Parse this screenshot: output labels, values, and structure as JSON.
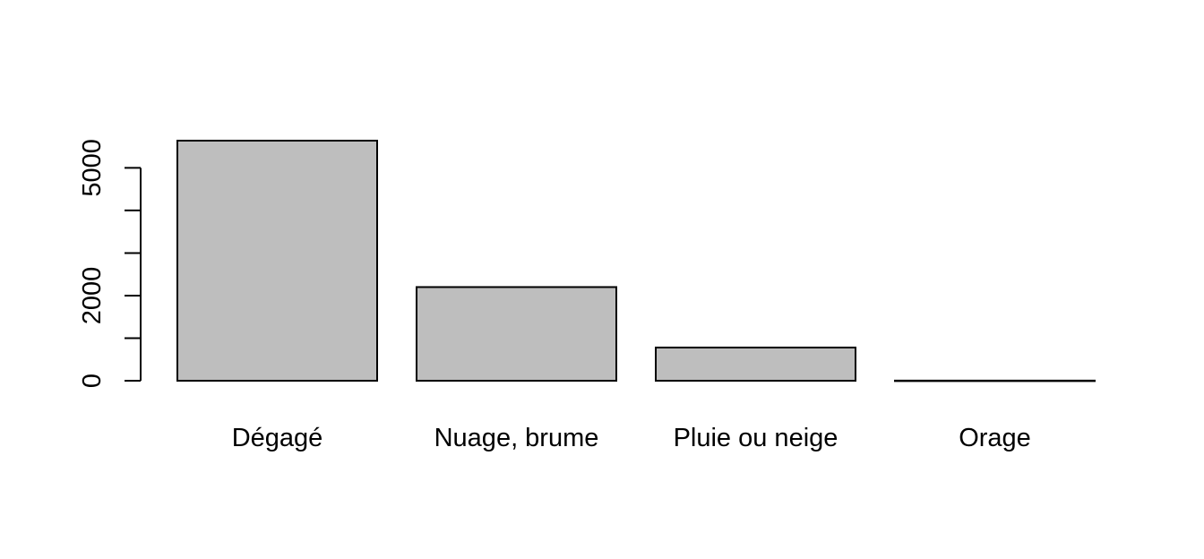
{
  "chart_data": {
    "type": "bar",
    "categories": [
      "Dégagé",
      "Nuage, brume",
      "Pluie ou neige",
      "Orage"
    ],
    "values": [
      5640,
      2200,
      780,
      3
    ],
    "ylim": [
      0,
      5640
    ],
    "y_ticks": [
      0,
      1000,
      2000,
      3000,
      4000,
      5000
    ],
    "y_tick_labels": [
      "0",
      "",
      "2000",
      "",
      "",
      "5000"
    ],
    "title": "",
    "xlabel": "",
    "ylabel": "",
    "grid": false,
    "colors": {
      "bar_fill": "#bebebe",
      "bar_stroke": "#000000",
      "axis": "#000000"
    }
  }
}
